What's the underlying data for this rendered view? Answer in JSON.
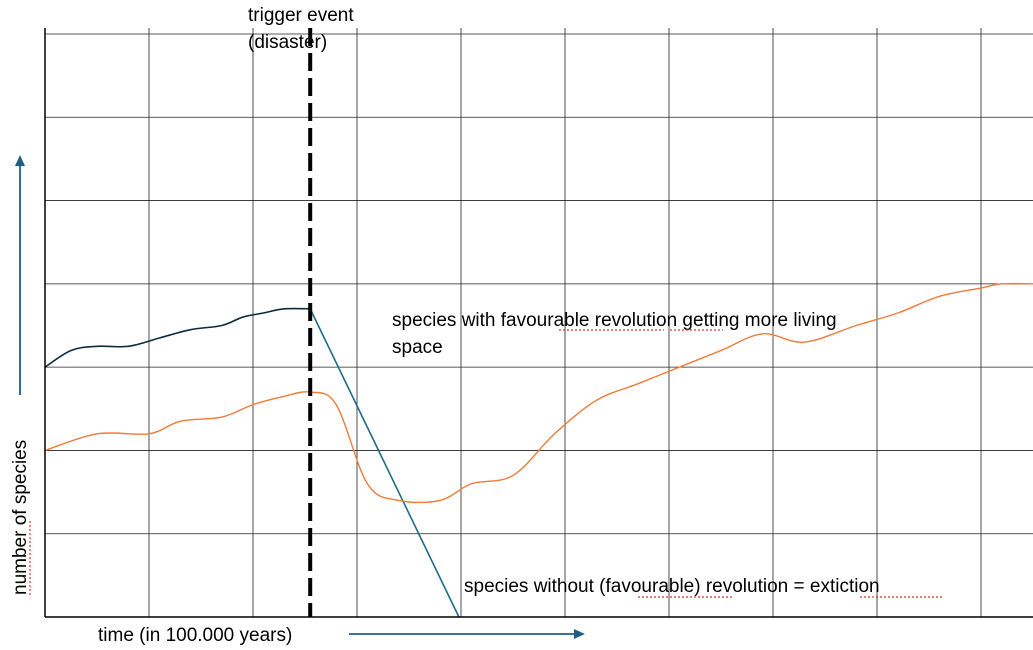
{
  "chart_data": {
    "type": "line",
    "xlabel": "time (in 100.000 years)",
    "ylabel": "number of species",
    "xlim": [
      0,
      9.5
    ],
    "ylim": [
      0,
      7
    ],
    "grid": true,
    "event": {
      "x": 2.55,
      "label_line1": "trigger event",
      "label_line2": "(disaster)"
    },
    "series": [
      {
        "color": "#0d2b3e",
        "x": [
          0,
          0.25,
          0.5,
          0.8,
          1.1,
          1.4,
          1.7,
          1.9,
          2.1,
          2.3,
          2.55
        ],
        "values": [
          3.0,
          3.2,
          3.25,
          3.25,
          3.35,
          3.45,
          3.5,
          3.6,
          3.65,
          3.7,
          3.7
        ]
      },
      {
        "color": "#1f6b8a",
        "x": [
          2.55,
          3.98
        ],
        "values": [
          3.7,
          0.0
        ]
      },
      {
        "color": "#f07a3a",
        "x": [
          0,
          0.5,
          1.0,
          1.3,
          1.7,
          2.0,
          2.3,
          2.55,
          2.8,
          3.1,
          3.4,
          3.8,
          4.1,
          4.5,
          4.9,
          5.3,
          5.7,
          6.1,
          6.5,
          6.9,
          7.3,
          7.8,
          8.2,
          8.6,
          9.0,
          9.2,
          9.5
        ],
        "values": [
          2.0,
          2.2,
          2.2,
          2.35,
          2.4,
          2.55,
          2.65,
          2.7,
          2.55,
          1.6,
          1.4,
          1.4,
          1.6,
          1.7,
          2.2,
          2.6,
          2.8,
          3.0,
          3.2,
          3.4,
          3.3,
          3.5,
          3.65,
          3.85,
          3.95,
          4.0,
          4.0
        ]
      }
    ],
    "annotations": [
      {
        "text_line1": "species with favourable revolution getting more living",
        "text_line2": "space"
      },
      {
        "text": "species without (favourable) revolution = extiction"
      }
    ]
  }
}
